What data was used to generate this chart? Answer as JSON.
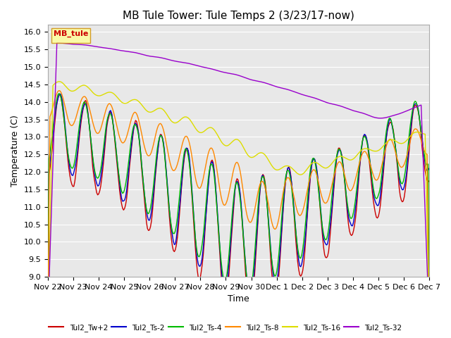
{
  "title": "MB Tule Tower: Tule Temps 2 (3/23/17-now)",
  "ylabel": "Temperature (C)",
  "xlabel": "Time",
  "ylim": [
    9.0,
    16.2
  ],
  "yticks": [
    9.0,
    9.5,
    10.0,
    10.5,
    11.0,
    11.5,
    12.0,
    12.5,
    13.0,
    13.5,
    14.0,
    14.5,
    15.0,
    15.5,
    16.0
  ],
  "xtick_labels": [
    "Nov 22",
    "Nov 23",
    "Nov 24",
    "Nov 25",
    "Nov 26",
    "Nov 27",
    "Nov 28",
    "Nov 29",
    "Nov 30",
    "Dec 1",
    "Dec 2",
    "Dec 3",
    "Dec 4",
    "Dec 5",
    "Dec 6",
    "Dec 7"
  ],
  "legend_label": "MB_tule",
  "line_colors": {
    "Tul2_Tw+2": "#cc0000",
    "Tul2_Ts-2": "#0000cc",
    "Tul2_Ts-4": "#00bb00",
    "Tul2_Ts-8": "#ff8800",
    "Tul2_Ts-16": "#dddd00",
    "Tul2_Ts-32": "#9900cc"
  },
  "background_color": "#ffffff",
  "plot_bg_color": "#e8e8e8",
  "grid_color": "#ffffff",
  "title_fontsize": 11,
  "label_fontsize": 9,
  "tick_fontsize": 8,
  "legend_box_color": "#ffff99",
  "legend_box_edge": "#cc8800"
}
